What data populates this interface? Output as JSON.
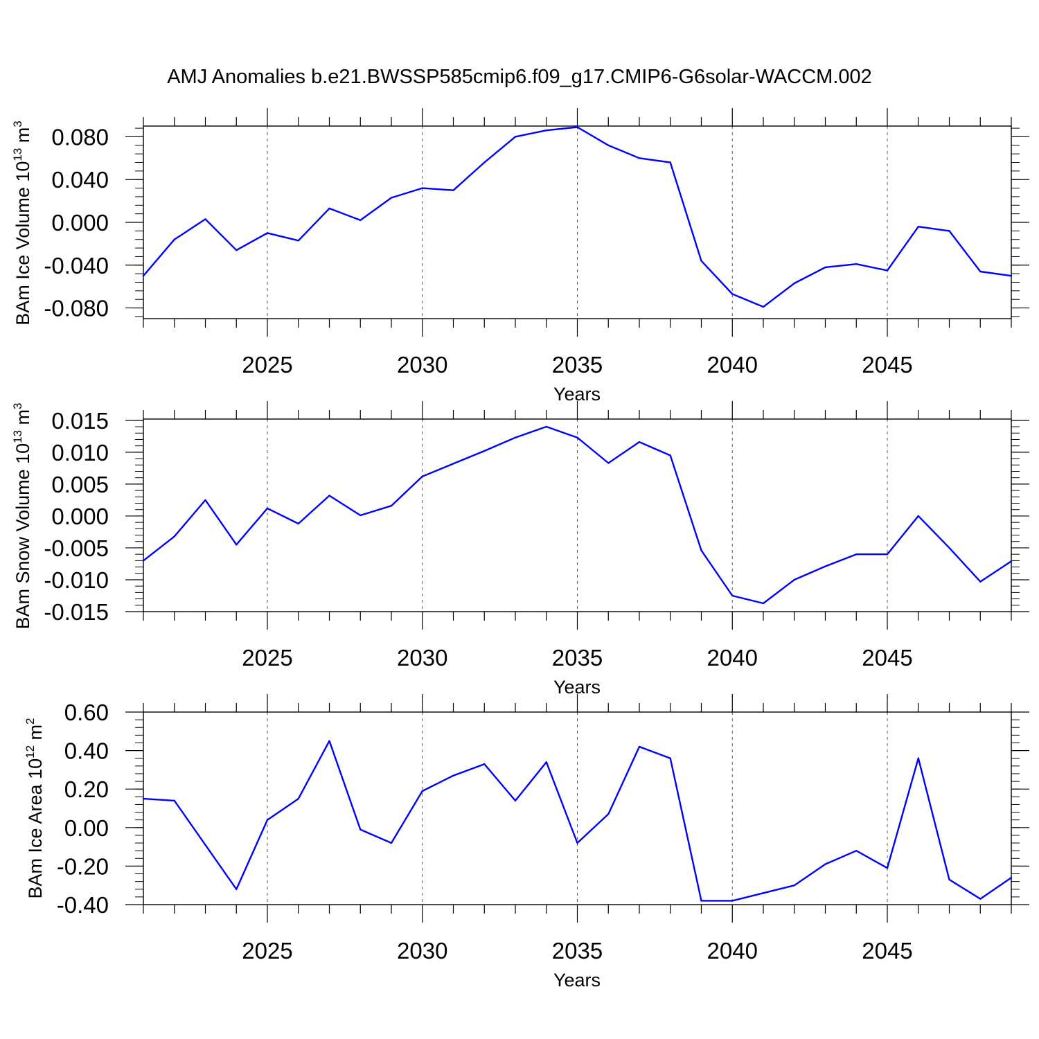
{
  "title": "AMJ Anomalies b.e21.BWSSP585cmip6.f09_g17.CMIP6-G6solar-WACCM.002",
  "line_color": "#0000ff",
  "chart_data": [
    {
      "type": "line",
      "name": "ice-volume",
      "ylabel": {
        "prefix": "BAm Ice Volume 10",
        "exponent": "13",
        "unit": " m",
        "unit_exponent": "3"
      },
      "xlabel": "Years",
      "xlim": [
        2021,
        2049
      ],
      "ylim": [
        -0.09,
        0.09
      ],
      "x_ticks": [
        2025,
        2030,
        2035,
        2040,
        2045
      ],
      "x_tick_labels": [
        "2025",
        "2030",
        "2035",
        "2040",
        "2045"
      ],
      "y_ticks": [
        0.08,
        0.04,
        0.0,
        -0.04,
        -0.08
      ],
      "y_tick_labels": [
        "0.080",
        "0.040",
        "0.000",
        "-0.040",
        "-0.080"
      ],
      "x": [
        2021,
        2022,
        2023,
        2024,
        2025,
        2026,
        2027,
        2028,
        2029,
        2030,
        2031,
        2032,
        2033,
        2034,
        2035,
        2036,
        2037,
        2038,
        2039,
        2040,
        2041,
        2042,
        2043,
        2044,
        2045,
        2046,
        2047,
        2048,
        2049
      ],
      "values": [
        -0.05,
        -0.016,
        0.003,
        -0.026,
        -0.01,
        -0.017,
        0.013,
        0.002,
        0.023,
        0.032,
        0.03,
        0.056,
        0.08,
        0.086,
        0.089,
        0.072,
        0.06,
        0.056,
        -0.036,
        -0.067,
        -0.079,
        -0.057,
        -0.042,
        -0.039,
        -0.045,
        -0.004,
        -0.008,
        -0.046,
        -0.05
      ]
    },
    {
      "type": "line",
      "name": "snow-volume",
      "ylabel": {
        "prefix": "BAm Snow Volume 10",
        "exponent": "13",
        "unit": " m",
        "unit_exponent": "3"
      },
      "xlabel": "Years",
      "xlim": [
        2021,
        2049
      ],
      "ylim": [
        -0.015,
        0.0152
      ],
      "x_ticks": [
        2025,
        2030,
        2035,
        2040,
        2045
      ],
      "x_tick_labels": [
        "2025",
        "2030",
        "2035",
        "2040",
        "2045"
      ],
      "y_ticks": [
        0.015,
        0.01,
        0.005,
        0.0,
        -0.005,
        -0.01,
        -0.015
      ],
      "y_tick_labels": [
        "0.015",
        "0.010",
        "0.005",
        "0.000",
        "-0.005",
        "-0.010",
        "-0.015"
      ],
      "x": [
        2021,
        2022,
        2023,
        2024,
        2025,
        2026,
        2027,
        2028,
        2029,
        2030,
        2031,
        2032,
        2033,
        2034,
        2035,
        2036,
        2037,
        2038,
        2039,
        2040,
        2041,
        2042,
        2043,
        2044,
        2045,
        2046,
        2047,
        2048,
        2049
      ],
      "values": [
        -0.007,
        -0.0032,
        0.0025,
        -0.0045,
        0.0012,
        -0.0012,
        0.0032,
        0.0001,
        0.0016,
        0.0062,
        0.0082,
        0.0102,
        0.0123,
        0.014,
        0.0123,
        0.0083,
        0.0116,
        0.0095,
        -0.0054,
        -0.0125,
        -0.0137,
        -0.01,
        -0.0079,
        -0.006,
        -0.006,
        0.0,
        -0.005,
        -0.0103,
        -0.0071
      ]
    },
    {
      "type": "line",
      "name": "ice-area",
      "ylabel": {
        "prefix": "BAm Ice Area 10",
        "exponent": "12",
        "unit": " m",
        "unit_exponent": "2"
      },
      "xlabel": "Years",
      "xlim": [
        2021,
        2049
      ],
      "ylim": [
        -0.4,
        0.6
      ],
      "x_ticks": [
        2025,
        2030,
        2035,
        2040,
        2045
      ],
      "x_tick_labels": [
        "2025",
        "2030",
        "2035",
        "2040",
        "2045"
      ],
      "y_ticks": [
        0.6,
        0.4,
        0.2,
        0.0,
        -0.2,
        -0.4
      ],
      "y_tick_labels": [
        "0.60",
        "0.40",
        "0.20",
        "0.00",
        "-0.20",
        "-0.40"
      ],
      "x": [
        2021,
        2022,
        2023,
        2024,
        2025,
        2026,
        2027,
        2028,
        2029,
        2030,
        2031,
        2032,
        2033,
        2034,
        2035,
        2036,
        2037,
        2038,
        2039,
        2040,
        2041,
        2042,
        2043,
        2044,
        2045,
        2046,
        2047,
        2048,
        2049
      ],
      "values": [
        0.15,
        0.14,
        -0.09,
        -0.32,
        0.04,
        0.15,
        0.45,
        -0.01,
        -0.08,
        0.19,
        0.27,
        0.33,
        0.14,
        0.34,
        -0.08,
        0.07,
        0.42,
        0.36,
        -0.38,
        -0.38,
        -0.34,
        -0.3,
        -0.19,
        -0.12,
        -0.21,
        0.36,
        -0.27,
        -0.37,
        -0.26
      ]
    }
  ]
}
